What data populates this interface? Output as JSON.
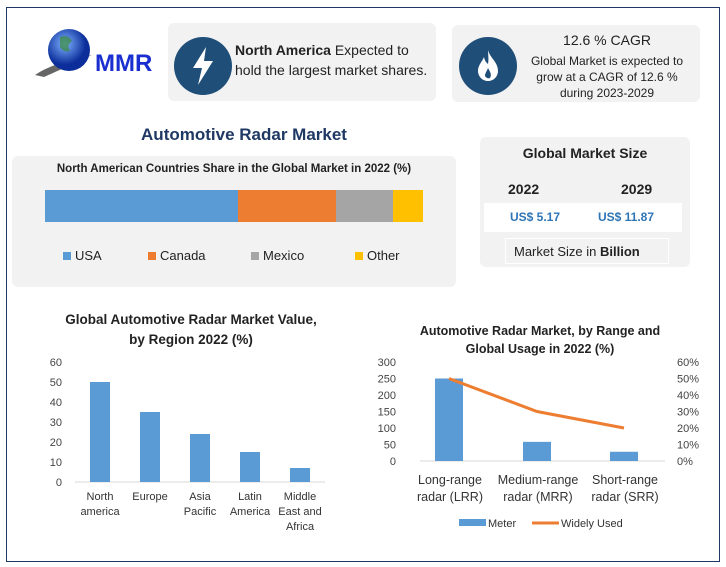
{
  "logo": {
    "text": "MMR"
  },
  "card1": {
    "bold": "North America",
    "rest": " Expected to hold the largest market shares.",
    "icon": "lightning-icon"
  },
  "card2": {
    "title": "12.6 % CAGR",
    "text": "Global Market is expected to grow at a CAGR of 12.6 % during 2023-2029",
    "icon": "flame-icon"
  },
  "main_title": "Automotive Radar Market",
  "market_size": {
    "title": "Global Market Size",
    "years": [
      "2022",
      "2029"
    ],
    "values": [
      "US$ 5.17",
      "US$ 11.87"
    ],
    "unit_prefix": "Market Size in ",
    "unit_bold": "Billion"
  },
  "colors": {
    "blue": "#5b9bd5",
    "orange": "#ed7d31",
    "gray": "#a5a5a5",
    "yellow": "#ffc000",
    "navy": "#1f4e79"
  },
  "chart_data": [
    {
      "type": "bar",
      "stacked": true,
      "orientation": "horizontal",
      "title": "North American Countries Share in the Global Market in 2022 (%)",
      "series": [
        {
          "name": "USA",
          "values": [
            51
          ]
        },
        {
          "name": "Canada",
          "values": [
            26
          ]
        },
        {
          "name": "Mexico",
          "values": [
            15
          ]
        },
        {
          "name": "Other",
          "values": [
            8
          ]
        }
      ],
      "legend": "bottom"
    },
    {
      "type": "bar",
      "title": "Global Automotive Radar Market Value, by Region 2022 (%)",
      "categories": [
        "North america",
        "Europe",
        "Asia Pacific",
        "Latin America",
        "Middle East and Africa"
      ],
      "values": [
        50,
        35,
        24,
        15,
        7
      ],
      "ylim": [
        0,
        60
      ],
      "yticks": [
        0,
        10,
        20,
        30,
        40,
        50,
        60
      ],
      "grid": false
    },
    {
      "type": "bar+line",
      "title": "Automotive Radar Market, by Range and Global Usage in 2022 (%)",
      "categories": [
        "Long-range radar (LRR)",
        "Medium-range radar (MRR)",
        "Short-range radar (SRR)"
      ],
      "series": [
        {
          "name": "Meter",
          "type": "bar",
          "axis": "left",
          "values": [
            250,
            58,
            28
          ]
        },
        {
          "name": "Widely Used",
          "type": "line",
          "axis": "right",
          "values": [
            50,
            30,
            20
          ]
        }
      ],
      "ylim": [
        0,
        300
      ],
      "yticks": [
        0,
        50,
        100,
        150,
        200,
        250,
        300
      ],
      "y2lim": [
        0,
        60
      ],
      "y2ticks": [
        "0%",
        "10%",
        "20%",
        "30%",
        "40%",
        "50%",
        "60%"
      ],
      "legend": "bottom"
    }
  ]
}
